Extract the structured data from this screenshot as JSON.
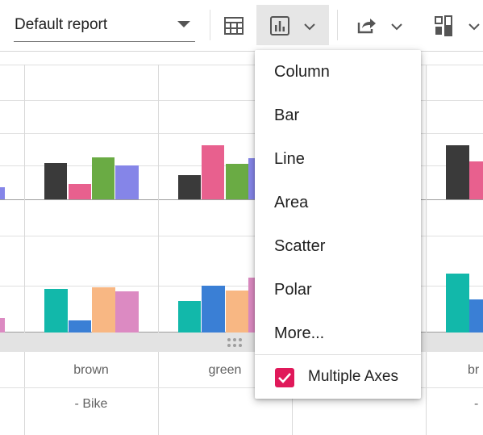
{
  "toolbar": {
    "report_name": "Default report",
    "icons": [
      "grid-icon",
      "chart-icon",
      "chevron-down-icon",
      "export-icon",
      "chevron-down-icon",
      "format-icon",
      "chevron-down-icon"
    ]
  },
  "chart_menu": {
    "items": [
      "Column",
      "Bar",
      "Line",
      "Area",
      "Scatter",
      "Polar",
      "More..."
    ],
    "multiple_axes_label": "Multiple Axes",
    "multiple_axes_checked": true,
    "accent": "#e0195a"
  },
  "grid": {
    "categories": [
      "brown",
      "green",
      "br"
    ],
    "group_label": "- Bike",
    "group_label_right": "-"
  },
  "colors": {
    "dark": "#3a3a3a",
    "pink": "#e8608e",
    "green": "#6aab44",
    "periwinkle": "#8585e8",
    "teal": "#12b8aa",
    "blue": "#3a7fd5",
    "peach": "#f8b783",
    "orchid": "#dc8ac2"
  }
}
